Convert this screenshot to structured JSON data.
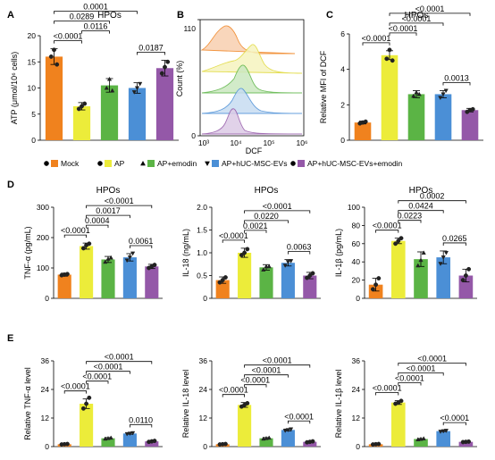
{
  "legend": [
    {
      "label": "Mock",
      "color": "#f0821e",
      "marker": "circle"
    },
    {
      "label": "AP",
      "color": "#ecec3a",
      "marker": "circle"
    },
    {
      "label": "AP+emodin",
      "color": "#5bb445",
      "marker": "triangle"
    },
    {
      "label": "AP+hUC-MSC-EVs",
      "color": "#4b8fd6",
      "marker": "triangle-down"
    },
    {
      "label": "AP+hUC-MSC-EVs+emodin",
      "color": "#9458a8",
      "marker": "circle"
    }
  ],
  "chart_data": [
    {
      "id": "A",
      "type": "bar",
      "panel_label": "A",
      "title": "HPOs",
      "ylabel": "ATP (μmol/10⁶ cells)",
      "ylim": [
        0,
        20
      ],
      "yticks": [
        "0",
        "5",
        "10",
        "15",
        "20"
      ],
      "values": [
        16.0,
        6.5,
        10.5,
        10.0,
        13.8
      ],
      "errors": [
        1.5,
        0.7,
        1.3,
        1.0,
        1.5
      ],
      "points": [
        [
          16.0,
          17.3,
          14.5
        ],
        [
          6.0,
          6.5,
          7.0
        ],
        [
          10.0,
          11.7,
          9.5
        ],
        [
          9.2,
          10.0,
          10.8
        ],
        [
          12.8,
          14.0,
          15.0
        ]
      ],
      "comparisons": [
        {
          "groups": [
            0,
            1
          ],
          "p": "<0.0001"
        },
        {
          "groups": [
            1,
            2
          ],
          "p": "0.0116"
        },
        {
          "groups": [
            3,
            4
          ],
          "p": "0.0187"
        },
        {
          "groups": [
            0,
            2
          ],
          "p": "0.0289"
        },
        {
          "groups": [
            0,
            3
          ],
          "p": "0.0001"
        }
      ]
    },
    {
      "id": "B",
      "type": "histogram",
      "panel_label": "B",
      "xlabel": "DCF",
      "ylabel": "Count (%)",
      "yticks": [
        "0",
        "110"
      ],
      "xticks": [
        "10³",
        "10⁴",
        "10⁵",
        "10⁶"
      ]
    },
    {
      "id": "C",
      "type": "bar",
      "panel_label": "C",
      "title": "HPOs",
      "ylabel": "Relative MFI of DCF",
      "ylim": [
        0,
        6
      ],
      "yticks": [
        "0",
        "2",
        "4",
        "6"
      ],
      "values": [
        1.0,
        4.8,
        2.6,
        2.6,
        1.7
      ],
      "errors": [
        0.08,
        0.25,
        0.2,
        0.2,
        0.1
      ],
      "points": [
        [
          0.95,
          1.0,
          1.05
        ],
        [
          4.6,
          5.1,
          4.5
        ],
        [
          2.5,
          2.7,
          2.6
        ],
        [
          2.4,
          2.6,
          2.8
        ],
        [
          1.6,
          1.7,
          1.75
        ]
      ],
      "comparisons": [
        {
          "groups": [
            0,
            1
          ],
          "p": "<0.0001"
        },
        {
          "groups": [
            3,
            4
          ],
          "p": "0.0013"
        },
        {
          "groups": [
            1,
            2
          ],
          "p": "<0.0001"
        },
        {
          "groups": [
            1,
            3
          ],
          "p": "<0.0001"
        },
        {
          "groups": [
            1,
            4
          ],
          "p": "<0.0001"
        }
      ]
    },
    {
      "id": "D1",
      "type": "bar",
      "panel_label": "D",
      "title": "HPOs",
      "ylabel": "TNF-α (pg/mL)",
      "ylim": [
        0,
        300
      ],
      "yticks": [
        "0",
        "100",
        "200",
        "300"
      ],
      "values": [
        78,
        172,
        128,
        135,
        105
      ],
      "errors": [
        5,
        10,
        10,
        12,
        7
      ],
      "points": [
        [
          76,
          78,
          80
        ],
        [
          165,
          175,
          180
        ],
        [
          120,
          130,
          134
        ],
        [
          125,
          135,
          148
        ],
        [
          100,
          105,
          110
        ]
      ],
      "comparisons": [
        {
          "groups": [
            0,
            1
          ],
          "p": "<0.0001"
        },
        {
          "groups": [
            3,
            4
          ],
          "p": "0.0061"
        },
        {
          "groups": [
            1,
            2
          ],
          "p": "0.0004"
        },
        {
          "groups": [
            1,
            3
          ],
          "p": "0.0017"
        },
        {
          "groups": [
            1,
            4
          ],
          "p": "<0.0001"
        }
      ]
    },
    {
      "id": "D2",
      "type": "bar",
      "panel_label": "",
      "title": "HPOs",
      "ylabel": "IL-18 (ng/mL)",
      "ylim": [
        0,
        2.0
      ],
      "yticks": [
        "0",
        "0.5",
        "1.0",
        "1.5",
        "2.0"
      ],
      "values": [
        0.4,
        1.0,
        0.68,
        0.78,
        0.5
      ],
      "errors": [
        0.07,
        0.1,
        0.06,
        0.07,
        0.07
      ],
      "points": [
        [
          0.35,
          0.4,
          0.46
        ],
        [
          0.95,
          1.0,
          1.08
        ],
        [
          0.63,
          0.7,
          0.7
        ],
        [
          0.72,
          0.8,
          0.82
        ],
        [
          0.45,
          0.5,
          0.55
        ]
      ],
      "comparisons": [
        {
          "groups": [
            0,
            1
          ],
          "p": "<0.0001"
        },
        {
          "groups": [
            3,
            4
          ],
          "p": "0.0063"
        },
        {
          "groups": [
            1,
            2
          ],
          "p": "0.0021"
        },
        {
          "groups": [
            1,
            3
          ],
          "p": "0.0220"
        },
        {
          "groups": [
            1,
            4
          ],
          "p": "<0.0001"
        }
      ]
    },
    {
      "id": "D3",
      "type": "bar",
      "panel_label": "",
      "title": "HPOs",
      "ylabel": "IL-1β (pg/mL)",
      "ylim": [
        0,
        100
      ],
      "yticks": [
        "0",
        "20",
        "40",
        "60",
        "80",
        "100"
      ],
      "values": [
        15,
        63,
        43,
        45,
        25
      ],
      "errors": [
        7,
        3,
        8,
        7,
        7
      ],
      "points": [
        [
          10,
          15,
          22
        ],
        [
          60,
          63,
          66
        ],
        [
          36,
          42,
          50
        ],
        [
          38,
          45,
          50
        ],
        [
          20,
          25,
          32
        ]
      ],
      "comparisons": [
        {
          "groups": [
            0,
            1
          ],
          "p": "<0.0001"
        },
        {
          "groups": [
            3,
            4
          ],
          "p": "0.0265"
        },
        {
          "groups": [
            1,
            2
          ],
          "p": "0.0223"
        },
        {
          "groups": [
            1,
            3
          ],
          "p": "0.0424"
        },
        {
          "groups": [
            1,
            4
          ],
          "p": "0.0002"
        }
      ]
    },
    {
      "id": "E1",
      "type": "bar",
      "panel_label": "E",
      "title": "",
      "ylabel": "Relative TNF-α level",
      "ylim": [
        0,
        36
      ],
      "yticks": [
        "0",
        "12",
        "24",
        "36"
      ],
      "values": [
        1,
        18,
        3.5,
        5.5,
        2.2
      ],
      "errors": [
        0.1,
        2.0,
        0.3,
        0.3,
        0.2
      ],
      "points": [
        [
          0.9,
          1,
          1.1
        ],
        [
          16,
          18,
          20.5
        ],
        [
          3.3,
          3.5,
          3.7
        ],
        [
          5.3,
          5.5,
          5.7
        ],
        [
          2.0,
          2.2,
          2.4
        ]
      ],
      "comparisons": [
        {
          "groups": [
            0,
            1
          ],
          "p": "<0.0001"
        },
        {
          "groups": [
            3,
            4
          ],
          "p": "0.0110"
        },
        {
          "groups": [
            1,
            2
          ],
          "p": "<0.0001"
        },
        {
          "groups": [
            1,
            3
          ],
          "p": "<0.0001"
        },
        {
          "groups": [
            1,
            4
          ],
          "p": "<0.0001"
        }
      ]
    },
    {
      "id": "E2",
      "type": "bar",
      "panel_label": "",
      "title": "",
      "ylabel": "Relative IL-18 level",
      "ylim": [
        0,
        36
      ],
      "yticks": [
        "0",
        "12",
        "24",
        "36"
      ],
      "values": [
        1,
        17.5,
        3.5,
        7,
        2
      ],
      "errors": [
        0.1,
        1.0,
        0.3,
        0.4,
        0.2
      ],
      "points": [
        [
          0.9,
          1,
          1.1
        ],
        [
          16.8,
          17.5,
          18.2
        ],
        [
          3.3,
          3.5,
          3.7
        ],
        [
          6.7,
          7.0,
          7.3
        ],
        [
          1.8,
          2,
          2.2
        ]
      ],
      "comparisons": [
        {
          "groups": [
            0,
            1
          ],
          "p": "<0.0001"
        },
        {
          "groups": [
            3,
            4
          ],
          "p": "<0.0001"
        },
        {
          "groups": [
            1,
            2
          ],
          "p": "<0.0001"
        },
        {
          "groups": [
            1,
            3
          ],
          "p": "<0.0001"
        },
        {
          "groups": [
            1,
            4
          ],
          "p": "<0.0001"
        }
      ]
    },
    {
      "id": "E3",
      "type": "bar",
      "panel_label": "",
      "title": "",
      "ylabel": "Relative IL-1β level",
      "ylim": [
        0,
        36
      ],
      "yticks": [
        "0",
        "12",
        "24",
        "36"
      ],
      "values": [
        1,
        18.5,
        3.2,
        6.5,
        2
      ],
      "errors": [
        0.1,
        0.8,
        0.2,
        0.2,
        0.1
      ],
      "points": [
        [
          0.9,
          1,
          1.1
        ],
        [
          18,
          18.5,
          19.2
        ],
        [
          3.0,
          3.2,
          3.4
        ],
        [
          6.3,
          6.5,
          6.7
        ],
        [
          1.9,
          2,
          2.1
        ]
      ],
      "comparisons": [
        {
          "groups": [
            0,
            1
          ],
          "p": "<0.0001"
        },
        {
          "groups": [
            3,
            4
          ],
          "p": "<0.0001"
        },
        {
          "groups": [
            1,
            2
          ],
          "p": "<0.0001"
        },
        {
          "groups": [
            1,
            3
          ],
          "p": "<0.0001"
        },
        {
          "groups": [
            1,
            4
          ],
          "p": "<0.0001"
        }
      ]
    }
  ]
}
